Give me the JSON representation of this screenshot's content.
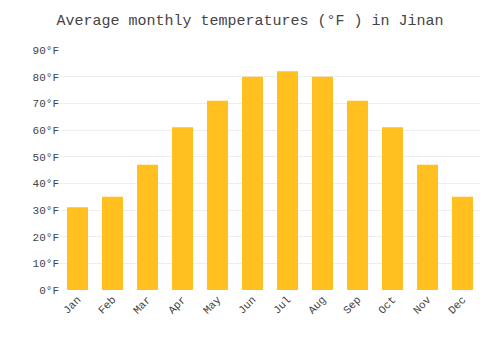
{
  "chart_data": {
    "type": "bar",
    "title": "Average monthly temperatures (°F ) in Jinan",
    "categories": [
      "Jan",
      "Feb",
      "Mar",
      "Apr",
      "May",
      "Jun",
      "Jul",
      "Aug",
      "Sep",
      "Oct",
      "Nov",
      "Dec"
    ],
    "values": [
      31,
      35,
      47,
      61,
      71,
      80,
      82,
      80,
      71,
      61,
      47,
      35
    ],
    "color": "#FFC020",
    "ylim": [
      0,
      90
    ],
    "yticks": [
      {
        "value": 0,
        "label": "0°F"
      },
      {
        "value": 10,
        "label": "10°F"
      },
      {
        "value": 20,
        "label": "20°F"
      },
      {
        "value": 30,
        "label": "30°F"
      },
      {
        "value": 40,
        "label": "40°F"
      },
      {
        "value": 50,
        "label": "50°F"
      },
      {
        "value": 60,
        "label": "60°F"
      },
      {
        "value": 70,
        "label": "70°F"
      },
      {
        "value": 80,
        "label": "80°F"
      },
      {
        "value": 90,
        "label": "90°F"
      }
    ],
    "grid": true
  }
}
